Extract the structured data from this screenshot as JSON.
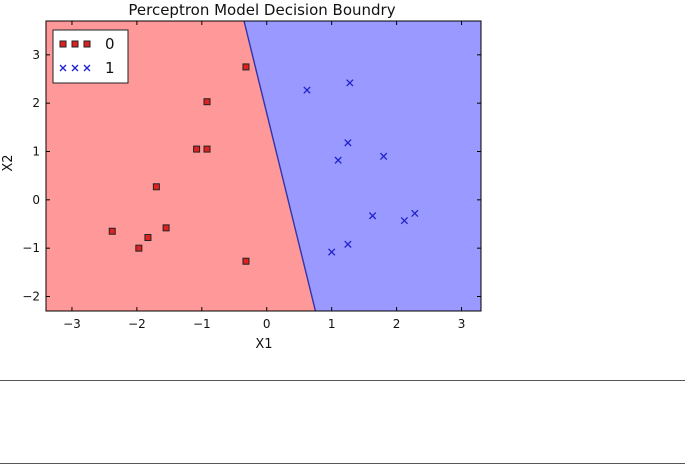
{
  "chart_data": {
    "type": "scatter",
    "title": "Perceptron Model Decision Boundry",
    "xlabel": "X1",
    "ylabel": "X2",
    "xlim": [
      -3.4,
      3.3
    ],
    "ylim": [
      -2.3,
      3.7
    ],
    "xticks": [
      -3,
      -2,
      -1,
      0,
      1,
      2,
      3
    ],
    "yticks": [
      -2,
      -1,
      0,
      1,
      2,
      3
    ],
    "grid": false,
    "legend_position": "top-left",
    "decision_boundary": {
      "points": [
        [
          -0.35,
          3.7
        ],
        [
          0.75,
          -2.3
        ]
      ],
      "region_colors": {
        "0": "#ff9999",
        "1": "#9999ff"
      }
    },
    "series": [
      {
        "name": "0",
        "marker": "square",
        "color": "#dd2222",
        "points": [
          [
            -2.38,
            -0.65
          ],
          [
            -1.97,
            -1.0
          ],
          [
            -1.83,
            -0.78
          ],
          [
            -1.55,
            -0.58
          ],
          [
            -1.7,
            0.27
          ],
          [
            -1.08,
            1.05
          ],
          [
            -0.92,
            1.05
          ],
          [
            -0.92,
            2.03
          ],
          [
            -0.32,
            2.75
          ],
          [
            -0.32,
            -1.27
          ]
        ]
      },
      {
        "name": "1",
        "marker": "x",
        "color": "#2222cc",
        "points": [
          [
            0.62,
            2.27
          ],
          [
            1.28,
            2.42
          ],
          [
            1.25,
            1.18
          ],
          [
            1.1,
            0.82
          ],
          [
            1.8,
            0.9
          ],
          [
            1.63,
            -0.33
          ],
          [
            2.28,
            -0.28
          ],
          [
            2.12,
            -0.43
          ],
          [
            1.25,
            -0.92
          ],
          [
            1.0,
            -1.08
          ]
        ]
      }
    ]
  }
}
